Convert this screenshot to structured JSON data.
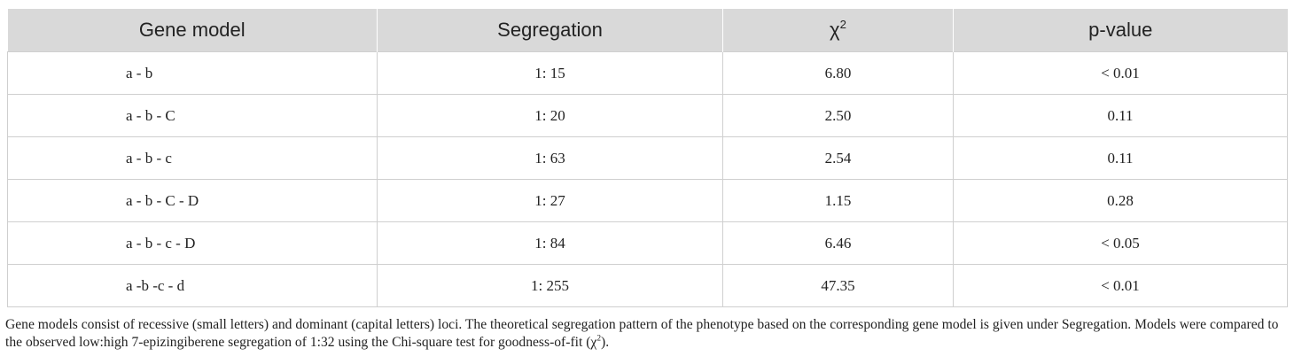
{
  "table": {
    "header": [
      "Gene model",
      "Segregation",
      {
        "text": "χ",
        "sup": "2"
      },
      "p-value"
    ],
    "rows": [
      [
        "a - b",
        "1: 15",
        "6.80",
        "< 0.01"
      ],
      [
        "a - b - C",
        "1: 20",
        "2.50",
        "0.11"
      ],
      [
        "a - b - c",
        "1: 63",
        "2.54",
        "0.11"
      ],
      [
        "a - b - C - D",
        "1: 27",
        "1.15",
        "0.28"
      ],
      [
        "a - b - c - D",
        "1: 84",
        "6.46",
        "< 0.05"
      ],
      [
        "a -b -c - d",
        "1: 255",
        "47.35",
        "< 0.01"
      ]
    ]
  },
  "caption": {
    "before": "Gene models consist of recessive (small letters) and dominant (capital letters) loci. The theoretical segregation pattern of the phenotype based on the corresponding gene model is given under Segregation. Models were compared to the observed low:high 7-epizingiberene segregation of 1:32 using the Chi-square test for goodness-of-fit (",
    "symbol": "χ",
    "sup": "2",
    "after": ")."
  }
}
